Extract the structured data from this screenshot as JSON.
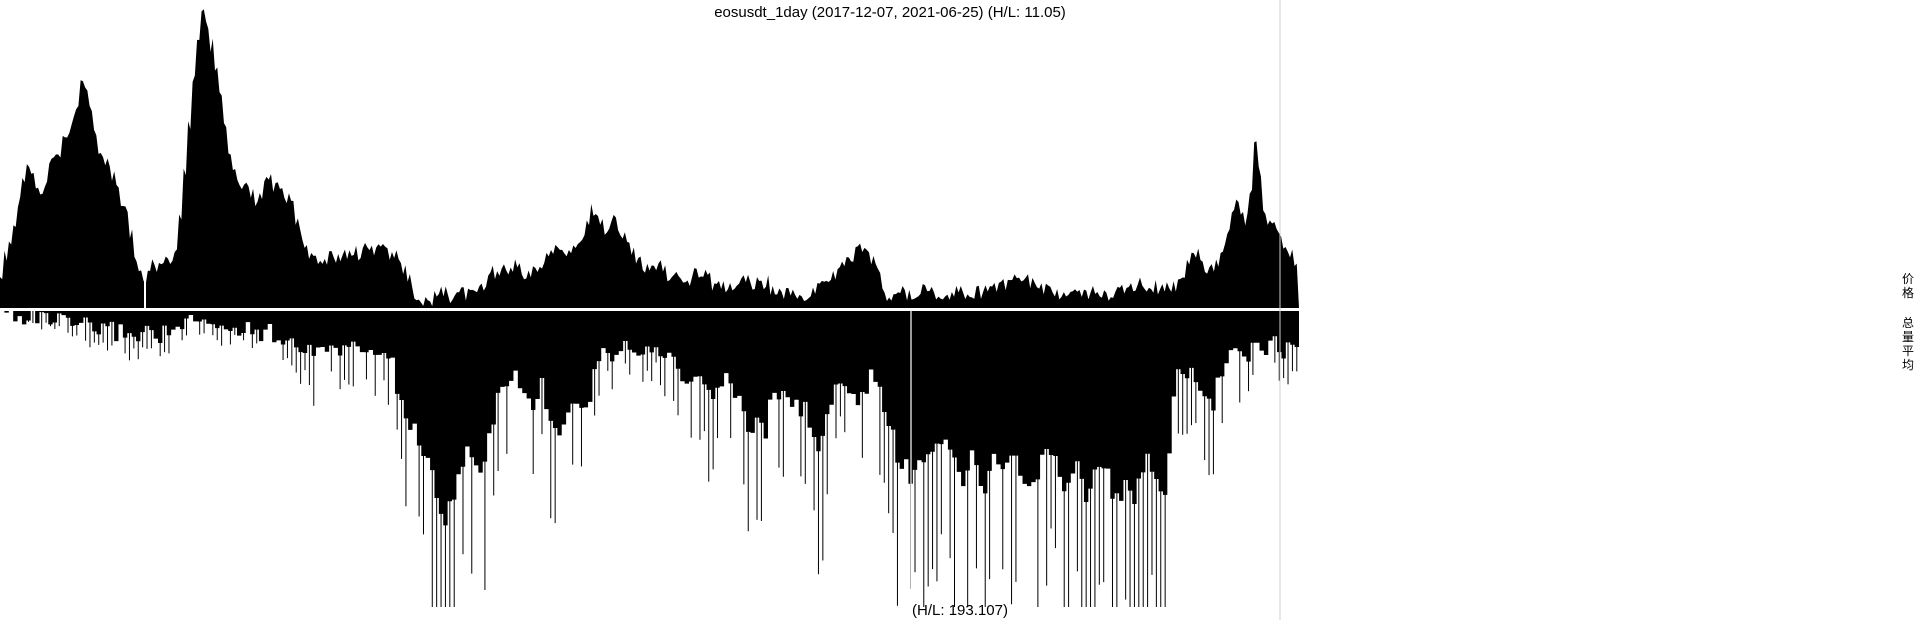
{
  "chart_data": {
    "type": "area",
    "title": "eosusdt_1day (2017-12-07, 2021-06-25) (H/L: 11.05)",
    "bottom_label": "(H/L: 193.107)",
    "series": [
      {
        "values": [
          0.12,
          0.18,
          0.22,
          0.28,
          0.35,
          0.42,
          0.47,
          0.45,
          0.4,
          0.38,
          0.43,
          0.48,
          0.5,
          0.52,
          0.56,
          0.58,
          0.62,
          0.68,
          0.74,
          0.73,
          0.66,
          0.58,
          0.54,
          0.5,
          0.48,
          0.44,
          0.4,
          0.36,
          0.32,
          0.25,
          0.18,
          0.12,
          0.1,
          0.13,
          0.16,
          0.14,
          0.14,
          0.15,
          0.16,
          0.2,
          0.3,
          0.45,
          0.62,
          0.78,
          0.9,
          0.98,
          0.95,
          0.88,
          0.8,
          0.7,
          0.6,
          0.52,
          0.47,
          0.43,
          0.42,
          0.4,
          0.38,
          0.35,
          0.38,
          0.42,
          0.43,
          0.4,
          0.4,
          0.38,
          0.37,
          0.35,
          0.3,
          0.24,
          0.2,
          0.17,
          0.17,
          0.15,
          0.15,
          0.17,
          0.18,
          0.16,
          0.17,
          0.18,
          0.17,
          0.19,
          0.18,
          0.2,
          0.21,
          0.2,
          0.19,
          0.2,
          0.2,
          0.18,
          0.17,
          0.16,
          0.13,
          0.1,
          0.05,
          0.02,
          0.01,
          0.02,
          0.03,
          0.04,
          0.05,
          0.05,
          0.04,
          0.05,
          0.06,
          0.05,
          0.04,
          0.04,
          0.05,
          0.06,
          0.08,
          0.1,
          0.12,
          0.12,
          0.13,
          0.12,
          0.13,
          0.14,
          0.13,
          0.12,
          0.11,
          0.12,
          0.13,
          0.15,
          0.16,
          0.19,
          0.2,
          0.19,
          0.17,
          0.19,
          0.22,
          0.23,
          0.25,
          0.3,
          0.33,
          0.32,
          0.29,
          0.27,
          0.29,
          0.31,
          0.26,
          0.24,
          0.23,
          0.2,
          0.17,
          0.15,
          0.14,
          0.14,
          0.14,
          0.15,
          0.13,
          0.11,
          0.11,
          0.1,
          0.1,
          0.1,
          0.09,
          0.11,
          0.11,
          0.12,
          0.11,
          0.08,
          0.08,
          0.07,
          0.07,
          0.07,
          0.08,
          0.08,
          0.09,
          0.09,
          0.08,
          0.08,
          0.08,
          0.09,
          0.06,
          0.05,
          0.05,
          0.05,
          0.05,
          0.04,
          0.04,
          0.04,
          0.04,
          0.05,
          0.06,
          0.07,
          0.08,
          0.1,
          0.11,
          0.13,
          0.15,
          0.16,
          0.18,
          0.19,
          0.21,
          0.18,
          0.17,
          0.16,
          0.12,
          0.05,
          0.02,
          0.03,
          0.04,
          0.05,
          0.04,
          0.05,
          0.05,
          0.05,
          0.06,
          0.05,
          0.05,
          0.05,
          0.05,
          0.06,
          0.05,
          0.05,
          0.05,
          0.05,
          0.05,
          0.04,
          0.05,
          0.05,
          0.06,
          0.06,
          0.06,
          0.07,
          0.08,
          0.09,
          0.1,
          0.1,
          0.09,
          0.09,
          0.08,
          0.08,
          0.07,
          0.06,
          0.06,
          0.05,
          0.05,
          0.05,
          0.05,
          0.05,
          0.04,
          0.04,
          0.05,
          0.05,
          0.05,
          0.05,
          0.05,
          0.04,
          0.05,
          0.07,
          0.08,
          0.07,
          0.07,
          0.07,
          0.08,
          0.08,
          0.08,
          0.07,
          0.07,
          0.06,
          0.07,
          0.07,
          0.08,
          0.1,
          0.12,
          0.15,
          0.18,
          0.18,
          0.16,
          0.13,
          0.14,
          0.14,
          0.16,
          0.2,
          0.26,
          0.32,
          0.35,
          0.33,
          0.3,
          0.38,
          0.55,
          0.45,
          0.33,
          0.3,
          0.28,
          0.25,
          0.22,
          0.2,
          0.18,
          0.15
        ]
      },
      {
        "values": [
          0.01,
          0.01,
          0.01,
          0.01,
          0.01,
          0.02,
          0.02,
          0.02,
          0.02,
          0.03,
          0.02,
          0.03,
          0.03,
          0.03,
          0.04,
          0.04,
          0.05,
          0.05,
          0.06,
          0.05,
          0.06,
          0.06,
          0.06,
          0.06,
          0.07,
          0.06,
          0.07,
          0.07,
          0.07,
          0.08,
          0.07,
          0.08,
          0.07,
          0.07,
          0.07,
          0.08,
          0.08,
          0.07,
          0.07,
          0.07,
          0.06,
          0.05,
          0.05,
          0.04,
          0.05,
          0.04,
          0.04,
          0.05,
          0.05,
          0.05,
          0.06,
          0.06,
          0.06,
          0.05,
          0.06,
          0.06,
          0.06,
          0.07,
          0.06,
          0.07,
          0.07,
          0.07,
          0.08,
          0.07,
          0.09,
          0.08,
          0.1,
          0.1,
          0.12,
          0.12,
          0.14,
          0.16,
          0.12,
          0.1,
          0.11,
          0.12,
          0.12,
          0.13,
          0.12,
          0.12,
          0.13,
          0.12,
          0.12,
          0.13,
          0.14,
          0.14,
          0.12,
          0.14,
          0.16,
          0.18,
          0.25,
          0.3,
          0.35,
          0.38,
          0.4,
          0.42,
          0.45,
          0.48,
          0.55,
          0.62,
          0.7,
          0.72,
          0.65,
          0.6,
          0.55,
          0.5,
          0.45,
          0.48,
          0.52,
          0.55,
          0.5,
          0.42,
          0.35,
          0.3,
          0.25,
          0.25,
          0.22,
          0.22,
          0.25,
          0.28,
          0.3,
          0.32,
          0.28,
          0.25,
          0.3,
          0.35,
          0.38,
          0.4,
          0.36,
          0.32,
          0.3,
          0.28,
          0.3,
          0.3,
          0.3,
          0.2,
          0.15,
          0.12,
          0.12,
          0.14,
          0.13,
          0.12,
          0.11,
          0.12,
          0.12,
          0.14,
          0.12,
          0.1,
          0.12,
          0.1,
          0.12,
          0.14,
          0.15,
          0.18,
          0.2,
          0.22,
          0.25,
          0.22,
          0.2,
          0.22,
          0.25,
          0.28,
          0.3,
          0.25,
          0.22,
          0.2,
          0.25,
          0.28,
          0.3,
          0.35,
          0.38,
          0.4,
          0.36,
          0.38,
          0.4,
          0.3,
          0.28,
          0.27,
          0.29,
          0.3,
          0.3,
          0.32,
          0.34,
          0.33,
          0.38,
          0.42,
          0.45,
          0.42,
          0.35,
          0.3,
          0.22,
          0.22,
          0.24,
          0.3,
          0.28,
          0.32,
          0.28,
          0.25,
          0.2,
          0.22,
          0.28,
          0.33,
          0.38,
          0.42,
          0.48,
          0.5,
          0.52,
          0.55,
          0.5,
          0.48,
          0.52,
          0.5,
          0.48,
          0.45,
          0.42,
          0.45,
          0.48,
          0.5,
          0.52,
          0.55,
          0.55,
          0.48,
          0.5,
          0.55,
          0.58,
          0.55,
          0.5,
          0.48,
          0.5,
          0.52,
          0.48,
          0.45,
          0.52,
          0.55,
          0.6,
          0.58,
          0.55,
          0.5,
          0.48,
          0.45,
          0.5,
          0.55,
          0.6,
          0.58,
          0.56,
          0.52,
          0.58,
          0.62,
          0.6,
          0.55,
          0.5,
          0.52,
          0.55,
          0.6,
          0.62,
          0.6,
          0.58,
          0.6,
          0.62,
          0.58,
          0.55,
          0.5,
          0.52,
          0.58,
          0.62,
          0.58,
          0.5,
          0.3,
          0.2,
          0.22,
          0.24,
          0.2,
          0.22,
          0.25,
          0.28,
          0.3,
          0.3,
          0.25,
          0.2,
          0.18,
          0.15,
          0.14,
          0.15,
          0.16,
          0.14,
          0.12,
          0.1,
          0.13,
          0.15,
          0.12,
          0.1,
          0.12,
          0.14,
          0.12,
          0.1,
          0.12
        ]
      }
    ],
    "side_labels": [
      "价格",
      "总量平均"
    ]
  }
}
